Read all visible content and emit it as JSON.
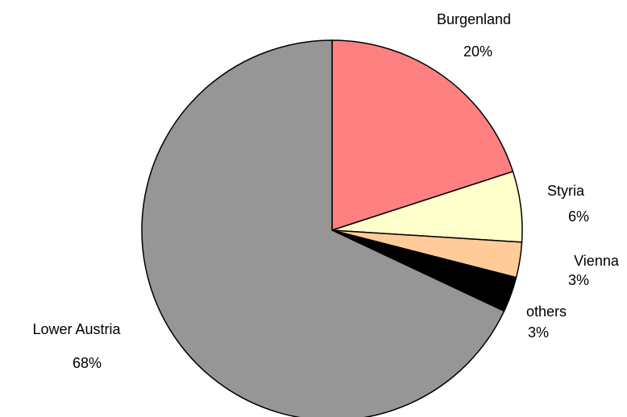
{
  "chart_data": {
    "type": "pie",
    "categories": [
      "Burgenland",
      "Styria",
      "Vienna",
      "others",
      "Lower Austria"
    ],
    "values": [
      20,
      6,
      3,
      3,
      68
    ],
    "value_labels": [
      "20%",
      "6%",
      "3%",
      "3%",
      "68%"
    ],
    "colors": [
      "#ff8080",
      "#ffffcc",
      "#ffcc99",
      "#000000",
      "#969696"
    ]
  }
}
